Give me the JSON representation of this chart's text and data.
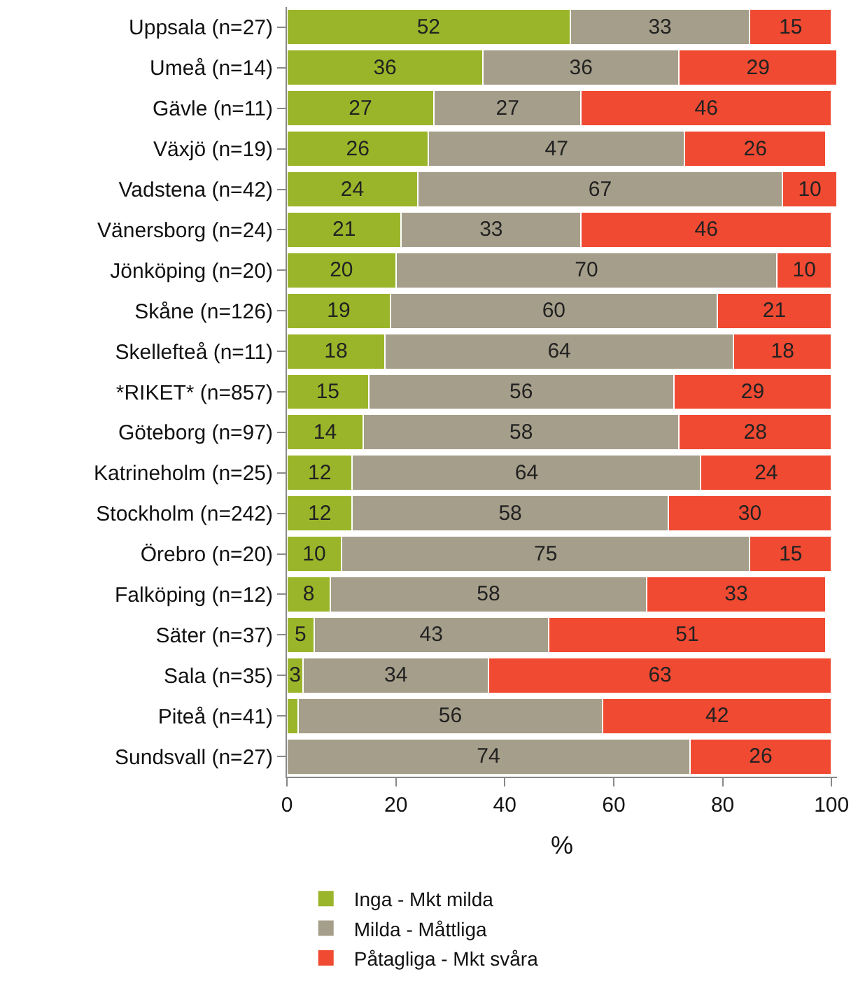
{
  "chart_data": {
    "type": "bar",
    "orientation": "horizontal",
    "stacked": true,
    "xlabel": "%",
    "categories": [
      "Uppsala (n=27)",
      "Umeå (n=14)",
      "Gävle (n=11)",
      "Växjö (n=19)",
      "Vadstena (n=42)",
      "Vänersborg (n=24)",
      "Jönköping (n=20)",
      "Skåne (n=126)",
      "Skellefteå (n=11)",
      "*RIKET* (n=857)",
      "Göteborg (n=97)",
      "Katrineholm (n=25)",
      "Stockholm (n=242)",
      "Örebro (n=20)",
      "Falköping (n=12)",
      "Säter (n=37)",
      "Sala (n=35)",
      "Piteå (n=41)",
      "Sundsvall (n=27)"
    ],
    "series": [
      {
        "name": "Inga - Mkt milda",
        "color": "#9bb52a",
        "values": [
          52,
          36,
          27,
          26,
          24,
          21,
          20,
          19,
          18,
          15,
          14,
          12,
          12,
          10,
          8,
          5,
          3,
          2,
          0
        ],
        "value_labels": [
          "52",
          "36",
          "27",
          "26",
          "24",
          "21",
          "20",
          "19",
          "18",
          "15",
          "14",
          "12",
          "12",
          "10",
          "8",
          "5",
          "3",
          null,
          null
        ]
      },
      {
        "name": "Milda - Måttliga",
        "color": "#a59e8a",
        "values": [
          33,
          36,
          27,
          47,
          67,
          33,
          70,
          60,
          64,
          56,
          58,
          64,
          58,
          75,
          58,
          43,
          34,
          56,
          74
        ],
        "value_labels": [
          "33",
          "36",
          "27",
          "47",
          "67",
          "33",
          "70",
          "60",
          "64",
          "56",
          "58",
          "64",
          "58",
          "75",
          "58",
          "43",
          "34",
          "56",
          "74"
        ]
      },
      {
        "name": "Påtagliga - Mkt svåra",
        "color": "#f04a32",
        "values": [
          15,
          29,
          46,
          26,
          10,
          46,
          10,
          21,
          18,
          29,
          28,
          24,
          30,
          15,
          33,
          51,
          63,
          42,
          26
        ],
        "value_labels": [
          "15",
          "29",
          "46",
          "26",
          "10",
          "46",
          "10",
          "21",
          "18",
          "29",
          "28",
          "24",
          "30",
          "15",
          "33",
          "51",
          "63",
          "42",
          "26"
        ]
      }
    ],
    "xlim": [
      0,
      101
    ],
    "xticks": [
      0,
      20,
      40,
      60,
      80,
      100
    ],
    "grid": false,
    "legend": "bottom"
  }
}
